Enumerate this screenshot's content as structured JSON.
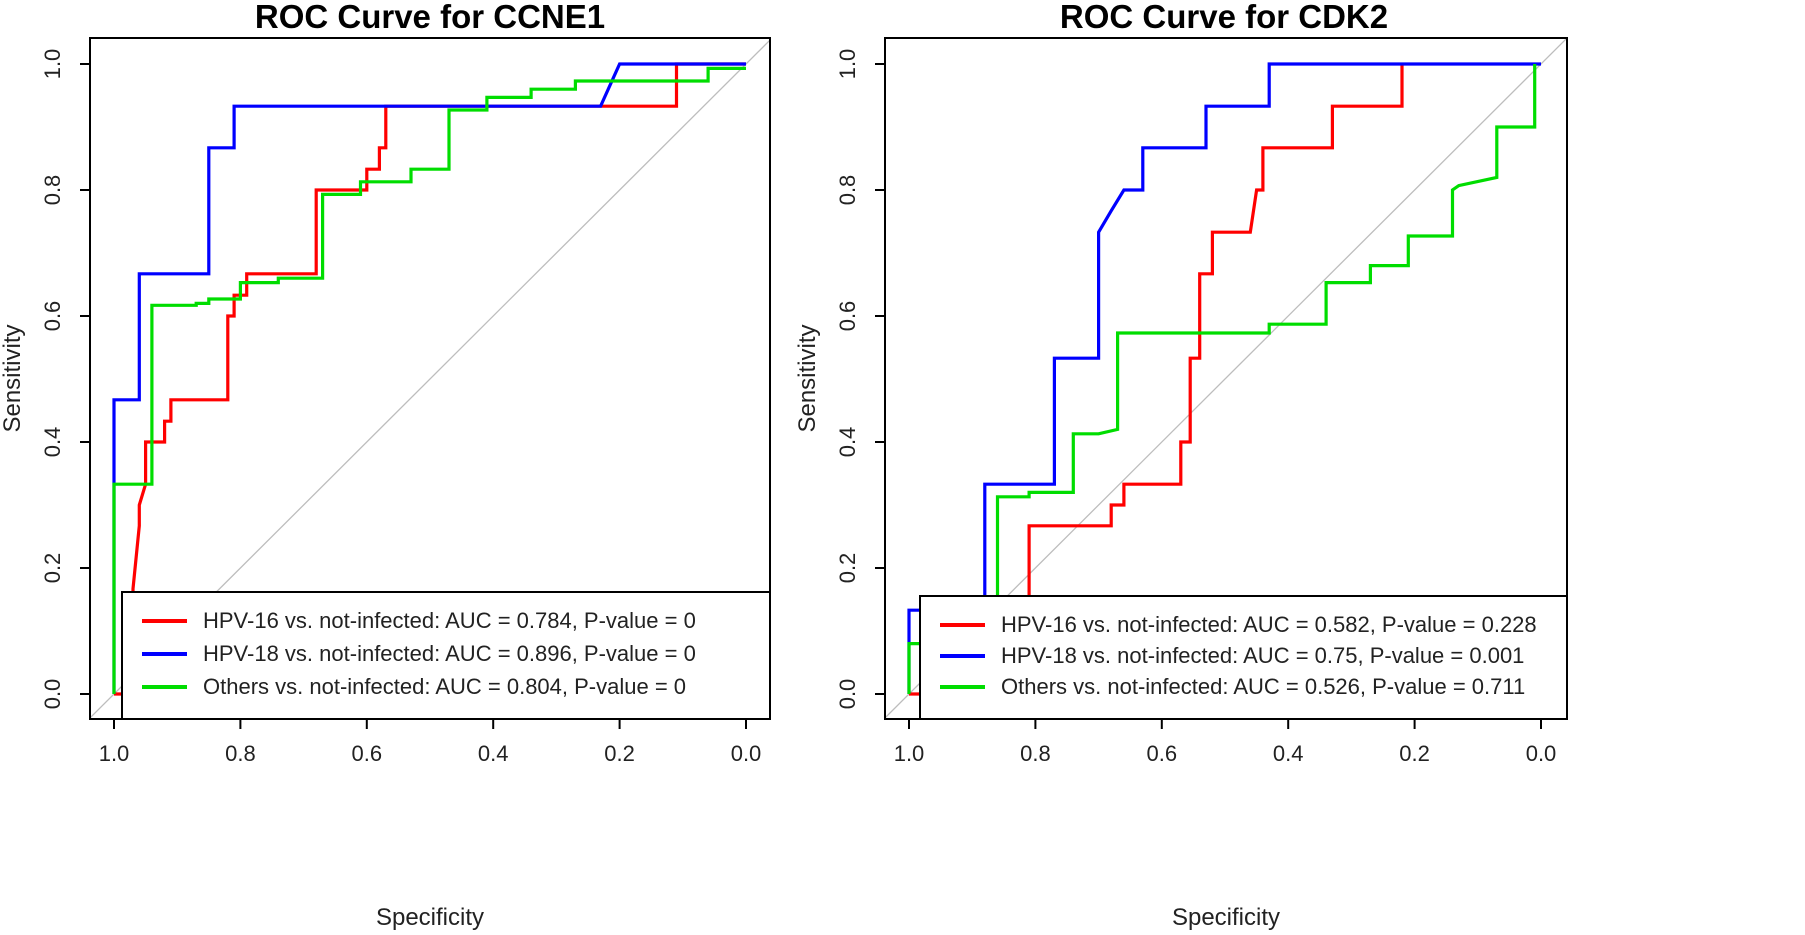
{
  "chart_data": [
    {
      "type": "line",
      "title": "ROC Curve for CCNE1",
      "xlabel": "Specificity",
      "ylabel": "Sensitivity",
      "xlim": [
        1.0,
        0.0
      ],
      "ylim": [
        0.0,
        1.0
      ],
      "x_ticks": [
        "1.0",
        "0.8",
        "0.6",
        "0.4",
        "0.2",
        "0.0"
      ],
      "y_ticks": [
        "0.0",
        "0.2",
        "0.4",
        "0.6",
        "0.8",
        "1.0"
      ],
      "diagonal_color": "#bdbdbd",
      "legend_position": "bottom-right",
      "series": [
        {
          "name": "HPV-16 vs. not-infected: AUC = 0.784, P-value = 0",
          "color": "#ff0000",
          "specificity": [
            1.0,
            0.97,
            0.97,
            0.96,
            0.96,
            0.95,
            0.95,
            0.92,
            0.92,
            0.91,
            0.91,
            0.82,
            0.82,
            0.81,
            0.81,
            0.79,
            0.79,
            0.68,
            0.68,
            0.6,
            0.6,
            0.58,
            0.58,
            0.57,
            0.57,
            0.11,
            0.11,
            0.0
          ],
          "sensitivity": [
            0.0,
            0.0,
            0.167,
            0.267,
            0.3,
            0.333,
            0.4,
            0.4,
            0.433,
            0.433,
            0.467,
            0.467,
            0.6,
            0.6,
            0.633,
            0.633,
            0.667,
            0.667,
            0.8,
            0.8,
            0.833,
            0.833,
            0.867,
            0.867,
            0.933,
            0.933,
            1.0,
            1.0
          ]
        },
        {
          "name": "HPV-18 vs. not-infected: AUC = 0.896, P-value = 0",
          "color": "#0000ff",
          "specificity": [
            1.0,
            1.0,
            1.0,
            0.96,
            0.96,
            0.85,
            0.85,
            0.81,
            0.81,
            0.23,
            0.2,
            0.0
          ],
          "sensitivity": [
            0.0,
            0.333,
            0.467,
            0.467,
            0.667,
            0.667,
            0.867,
            0.867,
            0.933,
            0.933,
            1.0,
            1.0
          ]
        },
        {
          "name": "Others vs. not-infected: AUC = 0.804, P-value = 0",
          "color": "#00dd00",
          "specificity": [
            1.0,
            1.0,
            0.94,
            0.94,
            0.87,
            0.87,
            0.85,
            0.85,
            0.8,
            0.8,
            0.74,
            0.74,
            0.67,
            0.67,
            0.61,
            0.61,
            0.53,
            0.53,
            0.47,
            0.47,
            0.41,
            0.41,
            0.34,
            0.34,
            0.27,
            0.27,
            0.2,
            0.06,
            0.06,
            0.0
          ],
          "sensitivity": [
            0.0,
            0.333,
            0.333,
            0.617,
            0.617,
            0.62,
            0.62,
            0.627,
            0.627,
            0.653,
            0.653,
            0.66,
            0.66,
            0.793,
            0.793,
            0.813,
            0.813,
            0.833,
            0.833,
            0.927,
            0.927,
            0.947,
            0.947,
            0.96,
            0.96,
            0.973,
            0.973,
            0.973,
            0.993,
            0.993
          ]
        }
      ]
    },
    {
      "type": "line",
      "title": "ROC Curve for CDK2",
      "xlabel": "Specificity",
      "ylabel": "Sensitivity",
      "xlim": [
        1.0,
        0.0
      ],
      "ylim": [
        0.0,
        1.0
      ],
      "x_ticks": [
        "1.0",
        "0.8",
        "0.6",
        "0.4",
        "0.2",
        "0.0"
      ],
      "y_ticks": [
        "0.0",
        "0.2",
        "0.4",
        "0.6",
        "0.8",
        "1.0"
      ],
      "diagonal_color": "#bdbdbd",
      "legend_position": "bottom-right",
      "series": [
        {
          "name": "HPV-16 vs. not-infected: AUC = 0.582, P-value = 0.228",
          "color": "#ff0000",
          "specificity": [
            1.0,
            0.81,
            0.81,
            0.68,
            0.68,
            0.66,
            0.66,
            0.57,
            0.57,
            0.555,
            0.555,
            0.54,
            0.54,
            0.52,
            0.52,
            0.5,
            0.5,
            0.46,
            0.45,
            0.44,
            0.44,
            0.33,
            0.33,
            0.22,
            0.22
          ],
          "sensitivity": [
            0.0,
            0.0,
            0.267,
            0.267,
            0.3,
            0.3,
            0.333,
            0.333,
            0.4,
            0.4,
            0.533,
            0.533,
            0.667,
            0.667,
            0.733,
            0.733,
            0.733,
            0.733,
            0.8,
            0.8,
            0.867,
            0.867,
            0.933,
            0.933,
            1.0
          ]
        },
        {
          "name": "HPV-18 vs. not-infected: AUC = 0.75, P-value = 0.001",
          "color": "#0000ff",
          "specificity": [
            1.0,
            1.0,
            0.88,
            0.88,
            0.77,
            0.77,
            0.7,
            0.7,
            0.68,
            0.66,
            0.63,
            0.63,
            0.53,
            0.53,
            0.43,
            0.43,
            0.0,
            0.0
          ],
          "sensitivity": [
            0.0,
            0.133,
            0.133,
            0.333,
            0.333,
            0.533,
            0.533,
            0.733,
            0.767,
            0.8,
            0.8,
            0.867,
            0.867,
            0.933,
            0.933,
            1.0,
            1.0,
            1.0
          ]
        },
        {
          "name": "Others vs. not-infected: AUC = 0.526, P-value = 0.711",
          "color": "#00dd00",
          "specificity": [
            1.0,
            1.0,
            0.86,
            0.86,
            0.81,
            0.81,
            0.74,
            0.74,
            0.7,
            0.67,
            0.67,
            0.54,
            0.43,
            0.43,
            0.34,
            0.34,
            0.27,
            0.27,
            0.21,
            0.21,
            0.14,
            0.14,
            0.13,
            0.07,
            0.07,
            0.01,
            0.01
          ],
          "sensitivity": [
            0.0,
            0.08,
            0.08,
            0.313,
            0.313,
            0.32,
            0.32,
            0.413,
            0.413,
            0.42,
            0.573,
            0.573,
            0.573,
            0.587,
            0.587,
            0.653,
            0.653,
            0.68,
            0.68,
            0.727,
            0.727,
            0.8,
            0.807,
            0.82,
            0.9,
            0.9,
            1.0
          ]
        }
      ]
    }
  ]
}
